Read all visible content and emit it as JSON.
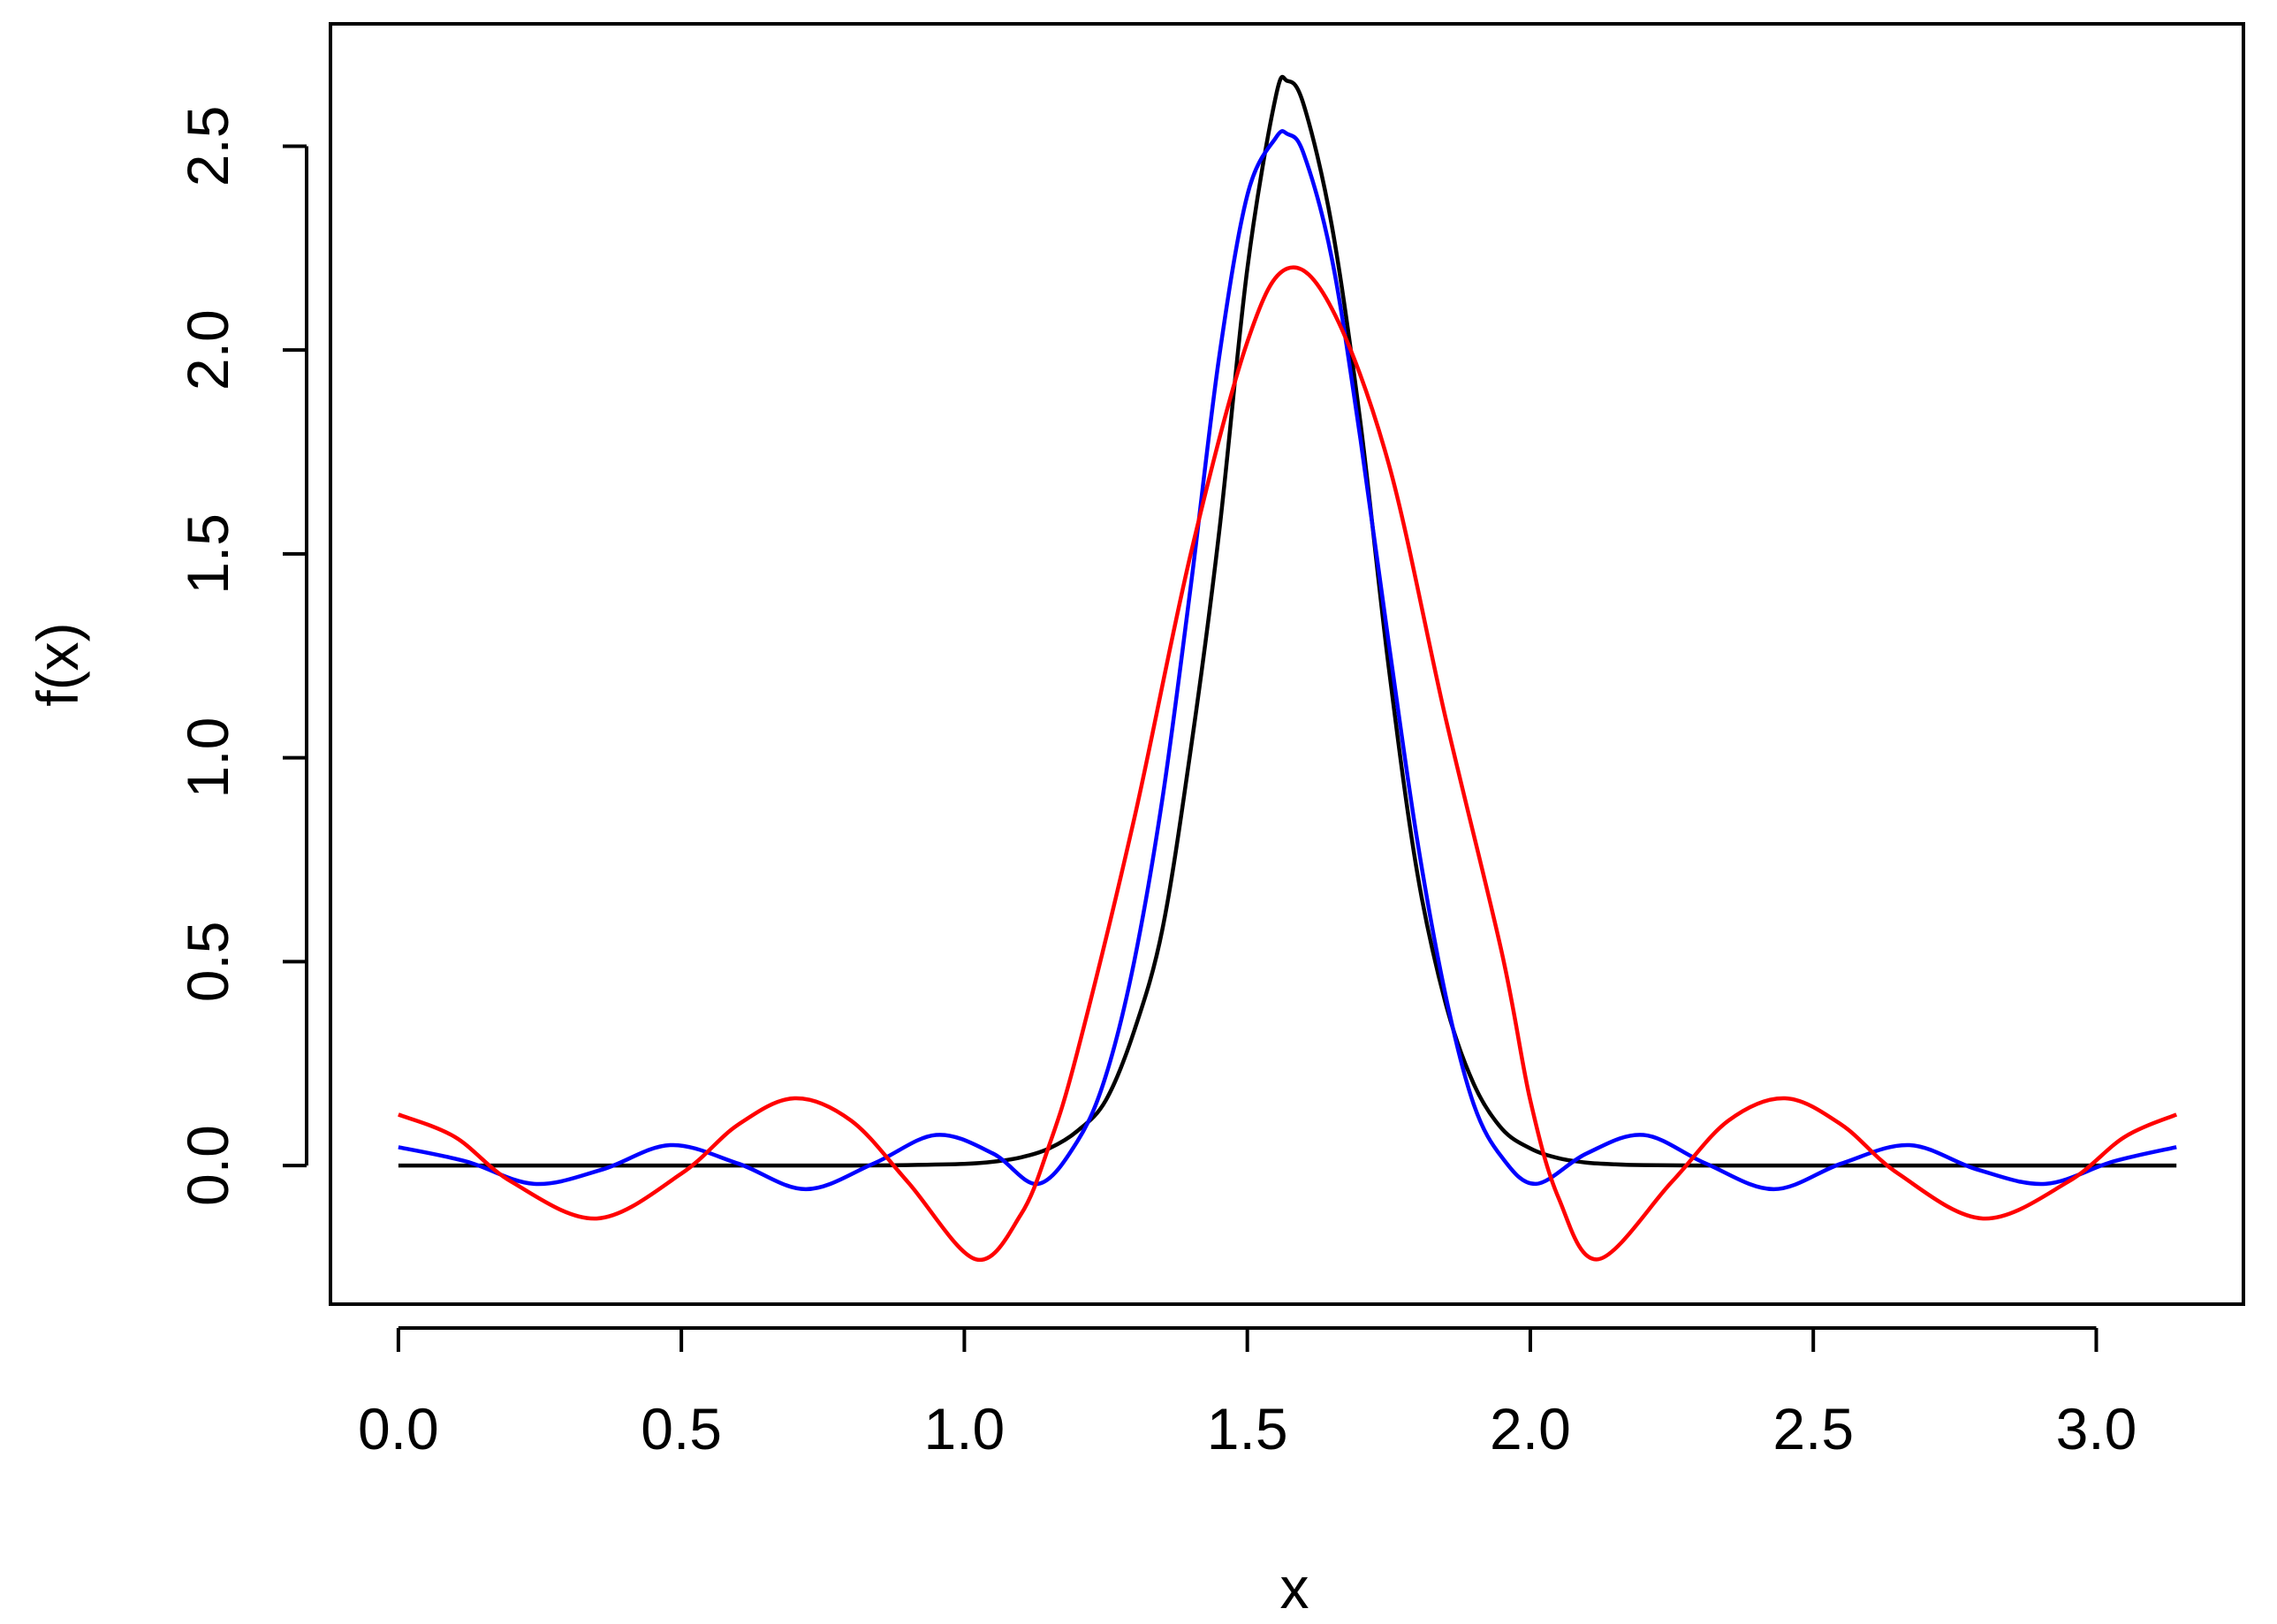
{
  "chart_data": {
    "type": "line",
    "title": "",
    "xlabel": "x",
    "ylabel": "f(x)",
    "xlim": [
      -0.12,
      3.26
    ],
    "ylim": [
      -0.34,
      2.8
    ],
    "xticks": [
      "0.0",
      "0.5",
      "1.0",
      "1.5",
      "2.0",
      "2.5",
      "3.0"
    ],
    "xtick_values": [
      0,
      0.5,
      1,
      1.5,
      2,
      2.5,
      3
    ],
    "yticks": [
      "0.0",
      "0.5",
      "1.0",
      "1.5",
      "2.0",
      "2.5"
    ],
    "ytick_values": [
      0,
      0.5,
      1,
      1.5,
      2,
      2.5
    ],
    "grid": false,
    "legend": "none",
    "series": [
      {
        "color": "#000000",
        "x": [
          0.0,
          0.2,
          0.4,
          0.6,
          0.8,
          0.9,
          1.0,
          1.05,
          1.1,
          1.15,
          1.2,
          1.25,
          1.3,
          1.35,
          1.4,
          1.45,
          1.5,
          1.55,
          1.5708,
          1.6,
          1.65,
          1.7,
          1.75,
          1.8,
          1.85,
          1.9,
          1.95,
          2.0,
          2.05,
          2.1,
          2.15,
          2.2,
          2.3,
          2.5,
          2.7,
          2.9,
          3.1416
        ],
        "y": [
          0.0,
          0.0,
          0.0,
          0.0,
          0.0,
          0.001,
          0.004,
          0.009,
          0.02,
          0.042,
          0.085,
          0.16,
          0.33,
          0.58,
          1.02,
          1.55,
          2.2,
          2.62,
          2.66,
          2.6,
          2.3,
          1.82,
          1.22,
          0.72,
          0.4,
          0.2,
          0.09,
          0.042,
          0.018,
          0.007,
          0.003,
          0.001,
          0.0,
          0.0,
          0.0,
          0.0,
          0.0
        ]
      },
      {
        "color": "#0000ff",
        "x": [
          0.0,
          0.12,
          0.24,
          0.36,
          0.48,
          0.6,
          0.72,
          0.84,
          0.95,
          1.05,
          1.13,
          1.2,
          1.25,
          1.3,
          1.35,
          1.4,
          1.45,
          1.5,
          1.55,
          1.5708,
          1.6,
          1.65,
          1.7,
          1.75,
          1.8,
          1.85,
          1.9,
          1.95,
          2.01,
          2.1,
          2.2,
          2.31,
          2.43,
          2.55,
          2.67,
          2.79,
          2.91,
          3.03,
          3.1416
        ],
        "y": [
          0.045,
          0.01,
          -0.045,
          -0.01,
          0.05,
          0.005,
          -0.058,
          0.005,
          0.075,
          0.03,
          -0.045,
          0.06,
          0.22,
          0.5,
          0.9,
          1.42,
          1.98,
          2.38,
          2.52,
          2.53,
          2.48,
          2.22,
          1.78,
          1.28,
          0.8,
          0.42,
          0.15,
          0.02,
          -0.045,
          0.03,
          0.075,
          0.005,
          -0.058,
          0.005,
          0.05,
          -0.01,
          -0.045,
          0.01,
          0.045
        ]
      },
      {
        "color": "#ff0000",
        "x": [
          0.0,
          0.1,
          0.2,
          0.35,
          0.5,
          0.6,
          0.7,
          0.8,
          0.9,
          1.02,
          1.1,
          1.15,
          1.2,
          1.3,
          1.4,
          1.5,
          1.5708,
          1.65,
          1.75,
          1.85,
          1.95,
          2.0,
          2.05,
          2.12,
          2.25,
          2.35,
          2.45,
          2.55,
          2.65,
          2.8,
          2.95,
          3.05,
          3.1416
        ],
        "y": [
          0.125,
          0.07,
          -0.04,
          -0.13,
          -0.02,
          0.1,
          0.165,
          0.11,
          -0.04,
          -0.23,
          -0.12,
          0.05,
          0.28,
          0.85,
          1.5,
          2.02,
          2.2,
          2.1,
          1.72,
          1.1,
          0.52,
          0.16,
          -0.08,
          -0.23,
          -0.04,
          0.11,
          0.165,
          0.1,
          -0.02,
          -0.13,
          -0.04,
          0.07,
          0.125
        ]
      }
    ]
  }
}
